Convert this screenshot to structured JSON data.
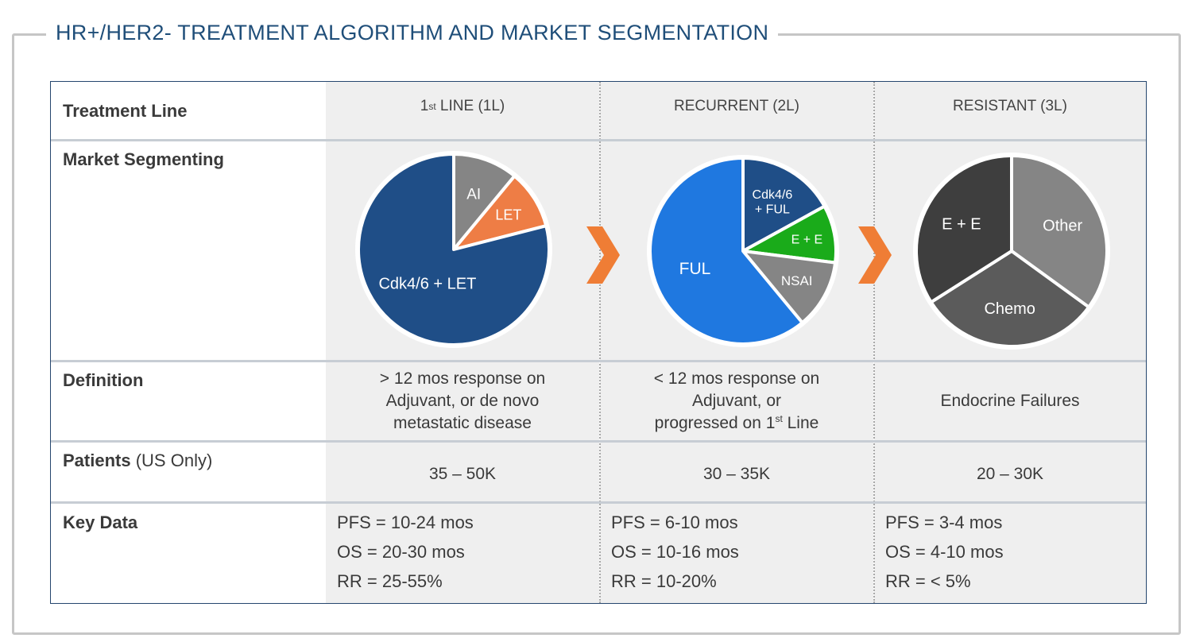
{
  "title": "HR+/HER2- TREATMENT ALGORITHM AND MARKET SEGMENTATION",
  "row_labels": {
    "treatment_line": "Treatment Line",
    "market_segmenting": "Market Segmenting",
    "definition": "Definition",
    "patients": "Patients",
    "patients_suffix": "(US Only)",
    "key_data": "Key Data"
  },
  "columns": [
    {
      "header_prefix": "1",
      "header_sup": "st",
      "header_suffix": " LINE (1L)",
      "definition": [
        "> 12 mos response on",
        "Adjuvant, or de novo",
        "metastatic disease"
      ],
      "patients": "35 – 50K",
      "key_data": [
        "PFS = 10-24 mos",
        "OS = 20-30 mos",
        "RR = 25-55%"
      ]
    },
    {
      "header": "RECURRENT (2L)",
      "definition_line1": "< 12 mos response on",
      "definition_line2": "Adjuvant, or",
      "definition_line3_prefix": "progressed on 1",
      "definition_line3_sup": "st",
      "definition_line3_suffix": " Line",
      "patients": "30 – 35K",
      "key_data": [
        "PFS = 6-10 mos",
        "OS = 10-16 mos",
        "RR = 10-20%"
      ]
    },
    {
      "header": "RESISTANT (3L)",
      "definition": "Endocrine Failures",
      "patients": "20 – 30K",
      "key_data": [
        "PFS = 3-4 mos",
        "OS = 4-10 mos",
        "RR = < 5%"
      ]
    }
  ],
  "colors": {
    "navy": "#1f4e87",
    "blue": "#1f78e0",
    "orange": "#ee7d45",
    "green": "#1aab1a",
    "gray": "#858585",
    "dark": "#3e3e3e",
    "mid": "#5b5b5b",
    "chevron": "#ef7d35"
  },
  "chart_data": [
    {
      "type": "pie",
      "title": "1st LINE (1L)",
      "start_angle_deg": 0,
      "slices": [
        {
          "label": "AI",
          "value": 11,
          "color": "#858585"
        },
        {
          "label": "LET",
          "value": 10,
          "color": "#ee7d45"
        },
        {
          "label": "Cdk4/6 + LET",
          "value": 79,
          "color": "#1f4e87"
        }
      ]
    },
    {
      "type": "pie",
      "title": "RECURRENT (2L)",
      "start_angle_deg": 0,
      "slices": [
        {
          "label": "Cdk4/6\n+ FUL",
          "value": 17,
          "color": "#1f4e87"
        },
        {
          "label": "E + E",
          "value": 10,
          "color": "#1aab1a"
        },
        {
          "label": "NSAI",
          "value": 12,
          "color": "#858585"
        },
        {
          "label": "FUL",
          "value": 61,
          "color": "#1f78e0"
        }
      ]
    },
    {
      "type": "pie",
      "title": "RESISTANT (3L)",
      "start_angle_deg": 0,
      "slices": [
        {
          "label": "Other",
          "value": 35,
          "color": "#858585"
        },
        {
          "label": "Chemo",
          "value": 31,
          "color": "#5b5b5b"
        },
        {
          "label": "E + E",
          "value": 34,
          "color": "#3e3e3e"
        }
      ]
    }
  ]
}
